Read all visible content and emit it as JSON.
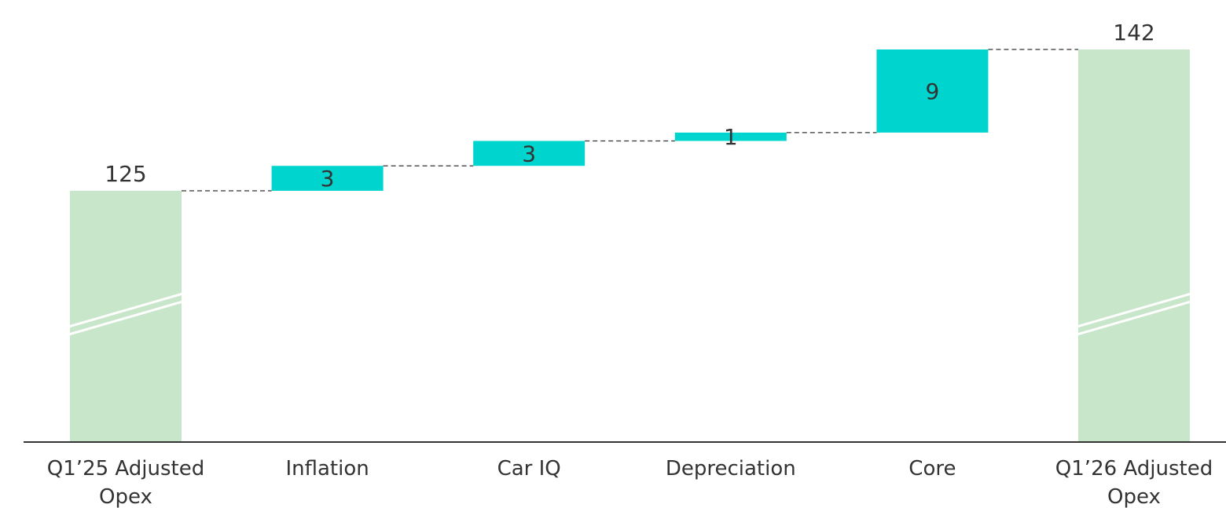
{
  "colors": {
    "total": "#c8e6c9",
    "delta": "#00d4cf",
    "axis": "#333333",
    "text": "#333333",
    "connector": "#333333",
    "break": "#ffffff"
  },
  "chart_data": {
    "type": "bar",
    "subtype": "waterfall",
    "title": "",
    "xlabel": "",
    "ylabel": "",
    "axis_break": true,
    "grid": false,
    "legend": "none",
    "bars": [
      {
        "label": "Q1’25 Adjusted Opex",
        "label_lines": [
          "Q1’25 Adjusted",
          "Opex"
        ],
        "kind": "total",
        "start": 0,
        "end": 125,
        "value_label": "125"
      },
      {
        "label": "Inflation",
        "label_lines": [
          "Inflation"
        ],
        "kind": "delta",
        "start": 125,
        "end": 128,
        "value_label": "3"
      },
      {
        "label": "Car IQ",
        "label_lines": [
          "Car IQ"
        ],
        "kind": "delta",
        "start": 128,
        "end": 131,
        "value_label": "3"
      },
      {
        "label": "Depreciation",
        "label_lines": [
          "Depreciation"
        ],
        "kind": "delta",
        "start": 131,
        "end": 132,
        "value_label": "1"
      },
      {
        "label": "Core",
        "label_lines": [
          "Core"
        ],
        "kind": "delta",
        "start": 132,
        "end": 142,
        "value_label": "9"
      },
      {
        "label": "Q1’26 Adjusted Opex",
        "label_lines": [
          "Q1’26 Adjusted",
          "Opex"
        ],
        "kind": "total",
        "start": 0,
        "end": 142,
        "value_label": "142"
      }
    ]
  }
}
